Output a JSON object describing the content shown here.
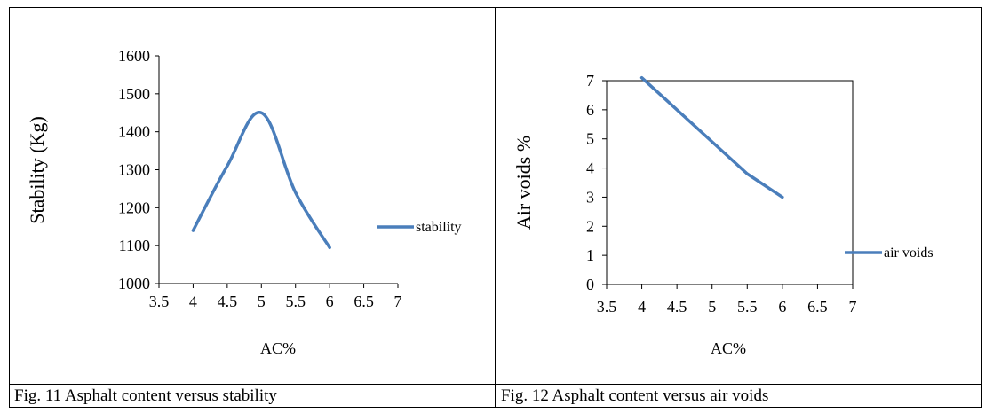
{
  "captions": {
    "fig11": "Fig. 11 Asphalt content versus stability",
    "fig12": "Fig. 12 Asphalt content versus air voids"
  },
  "colors": {
    "series": "#4a7ebb",
    "axis": "#000000"
  },
  "chart_data": [
    {
      "type": "line",
      "title": "",
      "xlabel": "AC%",
      "ylabel": "Stability (Kg)",
      "xlim": [
        3.5,
        7
      ],
      "ylim": [
        1000,
        1600
      ],
      "xticks": [
        "3.5",
        "4",
        "4.5",
        "5",
        "5.5",
        "6",
        "6.5",
        "7"
      ],
      "yticks": [
        "1000",
        "1100",
        "1200",
        "1300",
        "1400",
        "1500",
        "1600"
      ],
      "grid": false,
      "legend": "right",
      "series": [
        {
          "name": "stability",
          "x": [
            4,
            4.5,
            5,
            5.5,
            6
          ],
          "y": [
            1140,
            1310,
            1450,
            1240,
            1095
          ]
        }
      ]
    },
    {
      "type": "line",
      "title": "",
      "xlabel": "AC%",
      "ylabel": "Air voids %",
      "xlim": [
        3.5,
        7
      ],
      "ylim": [
        0,
        7
      ],
      "xticks": [
        "3.5",
        "4",
        "4.5",
        "5",
        "5.5",
        "6",
        "6.5",
        "7"
      ],
      "yticks": [
        "0",
        "1",
        "2",
        "3",
        "4",
        "5",
        "6",
        "7"
      ],
      "grid": false,
      "legend": "right",
      "series": [
        {
          "name": "air voids",
          "x": [
            4,
            4.5,
            5,
            5.5,
            6
          ],
          "y": [
            7.1,
            6.0,
            4.9,
            3.8,
            3.0
          ]
        }
      ]
    }
  ]
}
